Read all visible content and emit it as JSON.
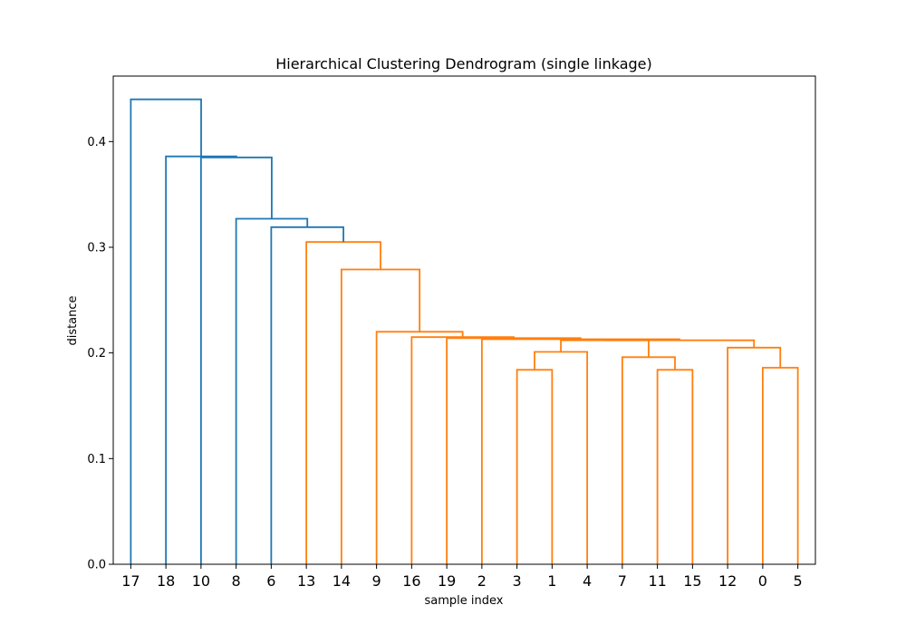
{
  "chart_data": {
    "type": "dendrogram",
    "title": "Hierarchical Clustering Dendrogram (single linkage)",
    "xlabel": "sample index",
    "ylabel": "distance",
    "ylim": [
      0,
      0.462
    ],
    "yticks": [
      0.0,
      0.1,
      0.2,
      0.3,
      0.4
    ],
    "ytick_labels": [
      "0.0",
      "0.1",
      "0.2",
      "0.3",
      "0.4"
    ],
    "leaf_order": [
      "17",
      "18",
      "10",
      "8",
      "6",
      "13",
      "14",
      "9",
      "16",
      "19",
      "2",
      "3",
      "1",
      "4",
      "7",
      "11",
      "15",
      "12",
      "0",
      "5"
    ],
    "colors": {
      "above_threshold": "#1f77b4",
      "cluster": "#ff7f0e"
    },
    "merges": [
      {
        "left": "3",
        "right": "1",
        "height": 0.184,
        "color": "cluster"
      },
      {
        "left": "11",
        "right": "15",
        "height": 0.184,
        "color": "cluster"
      },
      {
        "left": "0",
        "right": "5",
        "height": 0.186,
        "color": "cluster"
      },
      {
        "left": "7",
        "right": "c2",
        "height": 0.196,
        "color": "cluster"
      },
      {
        "left": "c1",
        "right": "4",
        "height": 0.201,
        "color": "cluster"
      },
      {
        "left": "12",
        "right": "c3",
        "height": 0.205,
        "color": "cluster"
      },
      {
        "left": "c5",
        "right": "c4",
        "height": 0.212,
        "color": "cluster"
      },
      {
        "left": "c7",
        "right": "c6",
        "height": 0.212,
        "color": "cluster"
      },
      {
        "left": "2",
        "right": "c8",
        "height": 0.213,
        "color": "cluster"
      },
      {
        "left": "19",
        "right": "c9",
        "height": 0.214,
        "color": "cluster"
      },
      {
        "left": "16",
        "right": "c10",
        "height": 0.215,
        "color": "cluster"
      },
      {
        "left": "9",
        "right": "c11",
        "height": 0.22,
        "color": "cluster"
      },
      {
        "left": "14",
        "right": "c12",
        "height": 0.279,
        "color": "cluster"
      },
      {
        "left": "13",
        "right": "c13",
        "height": 0.305,
        "color": "cluster"
      },
      {
        "left": "6",
        "right": "c14",
        "height": 0.319,
        "color": "above_threshold"
      },
      {
        "left": "8",
        "right": "c15",
        "height": 0.327,
        "color": "above_threshold"
      },
      {
        "left": "10",
        "right": "c16",
        "height": 0.385,
        "color": "above_threshold"
      },
      {
        "left": "18",
        "right": "c17",
        "height": 0.386,
        "color": "above_threshold"
      },
      {
        "left": "17",
        "right": "c18",
        "height": 0.44,
        "color": "above_threshold"
      }
    ]
  }
}
